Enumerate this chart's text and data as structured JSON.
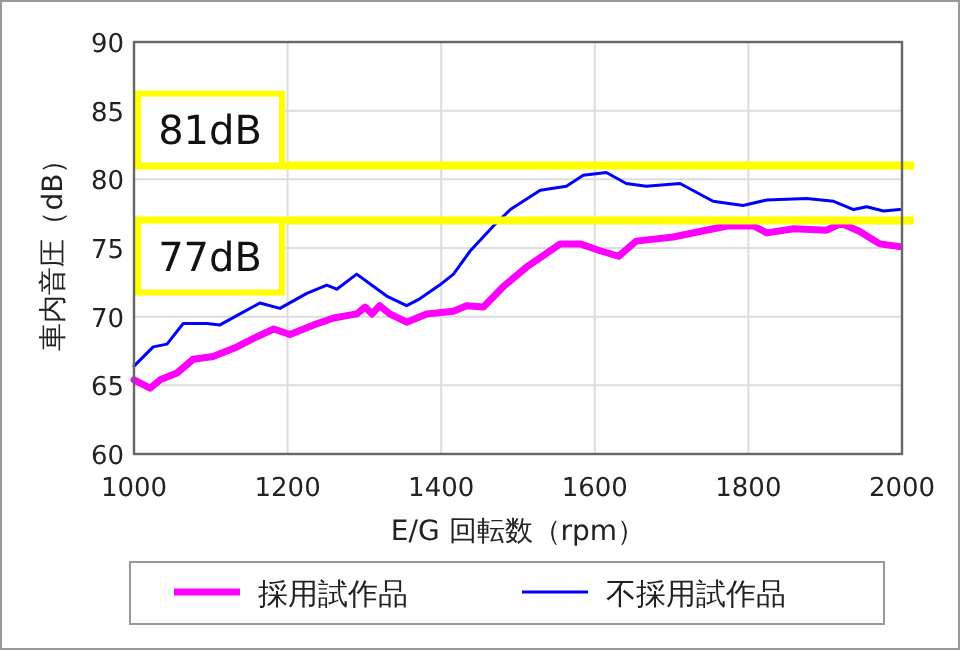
{
  "chart_data": {
    "type": "line",
    "xlabel": "E/G 回転数（rpm）",
    "ylabel": "車内音圧（dB）",
    "xlim": [
      1000,
      2000
    ],
    "ylim": [
      60,
      90
    ],
    "xticks": [
      1000,
      1200,
      1400,
      1600,
      1800,
      2000
    ],
    "yticks": [
      60,
      65,
      70,
      75,
      80,
      85,
      90
    ],
    "grid": true,
    "legend": "bottom",
    "series": [
      {
        "name": "採用試作品",
        "color": "#ff00ff",
        "x": [
          1000,
          1021,
          1034,
          1056,
          1077,
          1103,
          1134,
          1155,
          1182,
          1203,
          1234,
          1260,
          1290,
          1301,
          1310,
          1320,
          1333,
          1355,
          1381,
          1416,
          1433,
          1455,
          1481,
          1511,
          1555,
          1581,
          1607,
          1631,
          1654,
          1702,
          1737,
          1772,
          1807,
          1824,
          1859,
          1902,
          1921,
          1945,
          1971,
          1997
        ],
        "values": [
          65.4,
          64.8,
          65.4,
          65.9,
          66.9,
          67.1,
          67.8,
          68.4,
          69.1,
          68.7,
          69.4,
          69.9,
          70.2,
          70.7,
          70.2,
          70.8,
          70.2,
          69.6,
          70.2,
          70.4,
          70.8,
          70.7,
          72.2,
          73.6,
          75.3,
          75.3,
          74.8,
          74.4,
          75.5,
          75.8,
          76.2,
          76.6,
          76.6,
          76.1,
          76.4,
          76.3,
          76.8,
          76.2,
          75.3,
          75.1
        ]
      },
      {
        "name": "不採用試作品",
        "color": "#0000ff",
        "x": [
          1000,
          1025,
          1043,
          1064,
          1095,
          1112,
          1138,
          1164,
          1190,
          1225,
          1251,
          1264,
          1290,
          1312,
          1329,
          1355,
          1372,
          1398,
          1416,
          1438,
          1468,
          1490,
          1529,
          1563,
          1585,
          1615,
          1641,
          1667,
          1711,
          1754,
          1793,
          1824,
          1876,
          1911,
          1937,
          1954,
          1976,
          1997
        ],
        "values": [
          66.4,
          67.8,
          68.0,
          69.5,
          69.5,
          69.4,
          70.2,
          71.0,
          70.6,
          71.7,
          72.3,
          72.0,
          73.1,
          72.2,
          71.5,
          70.8,
          71.3,
          72.3,
          73.1,
          74.8,
          76.6,
          77.8,
          79.2,
          79.5,
          80.3,
          80.5,
          79.7,
          79.5,
          79.7,
          78.4,
          78.1,
          78.5,
          78.6,
          78.4,
          77.8,
          78.0,
          77.7,
          77.8
        ]
      }
    ],
    "ref_lines": [
      {
        "axis": "y",
        "value": 81,
        "label": "81dB",
        "color": "#ffff00"
      },
      {
        "axis": "y",
        "value": 77,
        "label": "77dB",
        "color": "#ffff00"
      }
    ]
  }
}
